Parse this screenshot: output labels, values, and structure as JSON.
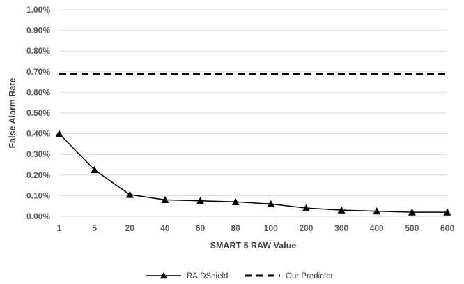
{
  "chart_data": {
    "type": "line",
    "xlabel": "SMART 5 RAW Value",
    "ylabel": "False Alarm Rate",
    "categories": [
      "1",
      "5",
      "20",
      "40",
      "60",
      "80",
      "100",
      "200",
      "300",
      "400",
      "500",
      "600"
    ],
    "ylim": [
      0,
      1.0
    ],
    "y_ticks": [
      "0.00%",
      "0.10%",
      "0.20%",
      "0.30%",
      "0.40%",
      "0.50%",
      "0.60%",
      "0.70%",
      "0.80%",
      "0.90%",
      "1.00%"
    ],
    "y_unit": "%",
    "grid": "horizontal",
    "legend_position": "bottom",
    "series": [
      {
        "name": "RAIDShield",
        "style": "solid-triangle-marker",
        "color": "#000000",
        "values": [
          0.4,
          0.225,
          0.105,
          0.08,
          0.075,
          0.07,
          0.06,
          0.04,
          0.03,
          0.025,
          0.02,
          0.02
        ]
      },
      {
        "name": "Our Predictor",
        "style": "dashed",
        "color": "#000000",
        "values": [
          0.69,
          0.69,
          0.69,
          0.69,
          0.69,
          0.69,
          0.69,
          0.69,
          0.69,
          0.69,
          0.69,
          0.69
        ]
      }
    ]
  }
}
